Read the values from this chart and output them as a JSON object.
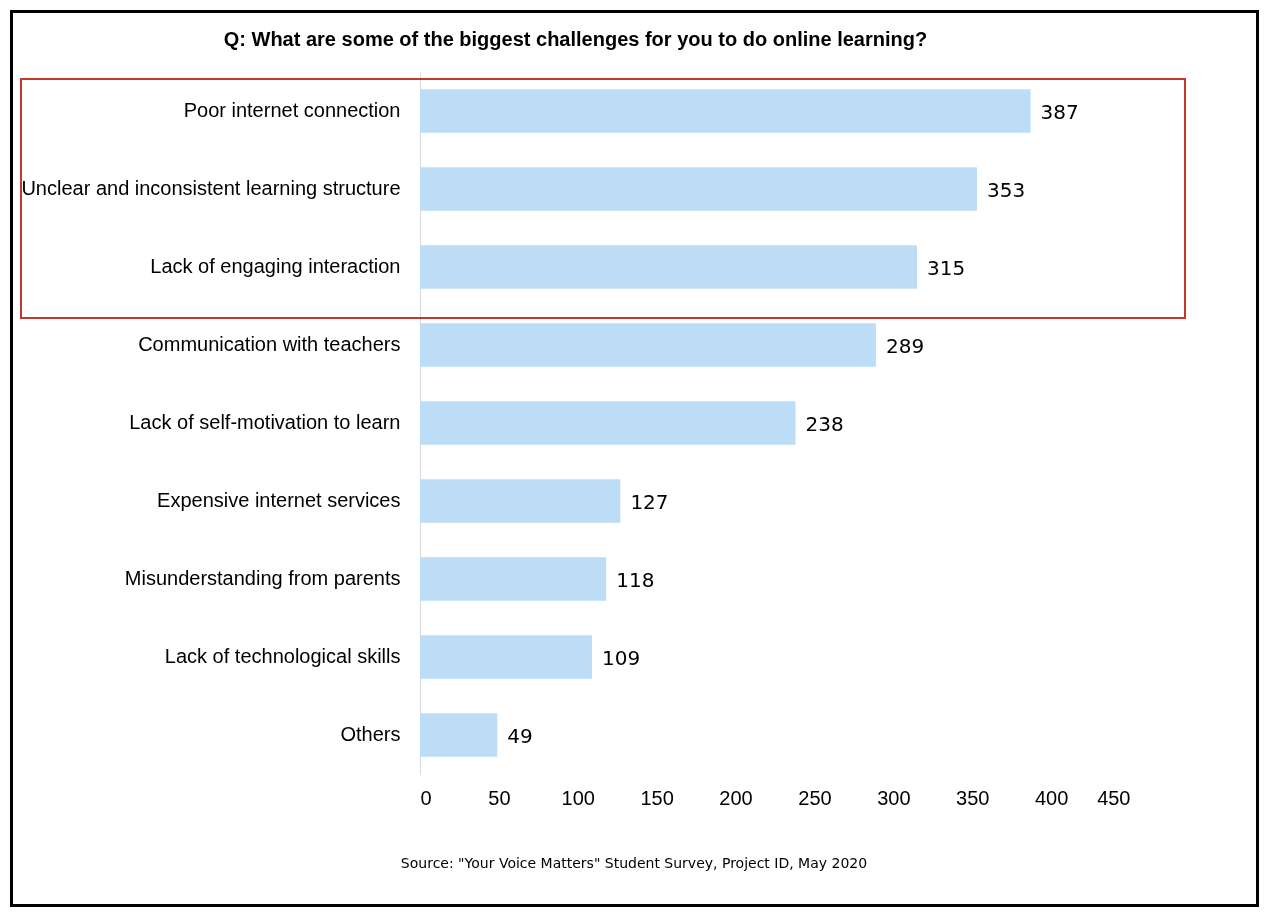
{
  "chart_data": {
    "type": "bar",
    "orientation": "horizontal",
    "title": "Q: What are some of the biggest challenges for you to do online learning?",
    "categories": [
      "Poor internet connection",
      "Unclear and inconsistent learning structure",
      "Lack of engaging interaction",
      "Communication with teachers",
      "Lack of self-motivation to learn",
      "Expensive internet services",
      "Misunderstanding from parents",
      "Lack of technological skills",
      "Others"
    ],
    "values": [
      387,
      353,
      315,
      289,
      238,
      127,
      118,
      109,
      49
    ],
    "color": "#bdddf6",
    "xlim": [
      0,
      450
    ],
    "xticks": [
      0,
      50,
      100,
      150,
      200,
      250,
      300,
      350,
      400,
      450
    ],
    "data_labels": true,
    "annotations": [
      "Source: \"Your Voice Matters\" Student Survey, Project ID, May 2020"
    ]
  }
}
